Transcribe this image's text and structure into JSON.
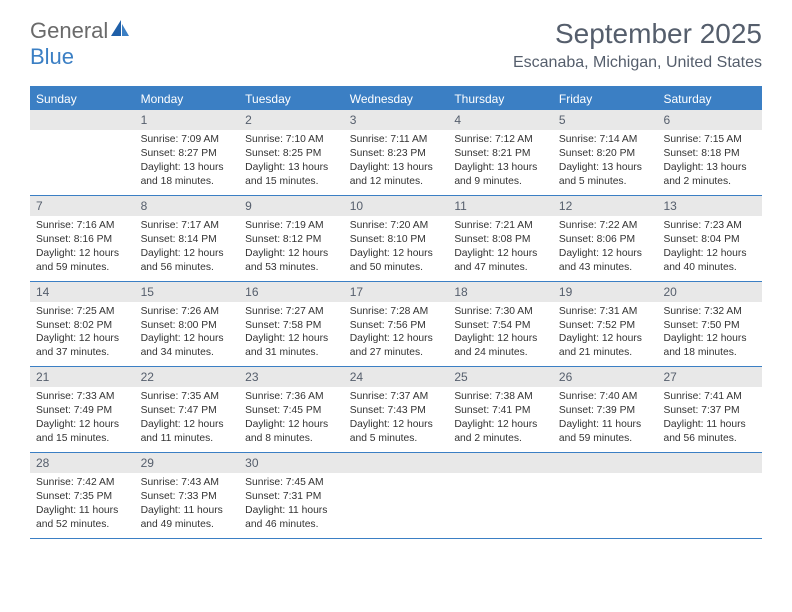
{
  "logo": {
    "text_general": "General",
    "text_blue": "Blue"
  },
  "title": "September 2025",
  "location": "Escanaba, Michigan, United States",
  "colors": {
    "accent": "#3b7fc4",
    "header_text": "#555e6c",
    "daynum_bg": "#e8e8e8",
    "body_text": "#333333",
    "white": "#ffffff"
  },
  "day_names": [
    "Sunday",
    "Monday",
    "Tuesday",
    "Wednesday",
    "Thursday",
    "Friday",
    "Saturday"
  ],
  "weeks": [
    [
      {
        "num": "",
        "sunrise": "",
        "sunset": "",
        "daylight": ""
      },
      {
        "num": "1",
        "sunrise": "Sunrise: 7:09 AM",
        "sunset": "Sunset: 8:27 PM",
        "daylight": "Daylight: 13 hours and 18 minutes."
      },
      {
        "num": "2",
        "sunrise": "Sunrise: 7:10 AM",
        "sunset": "Sunset: 8:25 PM",
        "daylight": "Daylight: 13 hours and 15 minutes."
      },
      {
        "num": "3",
        "sunrise": "Sunrise: 7:11 AM",
        "sunset": "Sunset: 8:23 PM",
        "daylight": "Daylight: 13 hours and 12 minutes."
      },
      {
        "num": "4",
        "sunrise": "Sunrise: 7:12 AM",
        "sunset": "Sunset: 8:21 PM",
        "daylight": "Daylight: 13 hours and 9 minutes."
      },
      {
        "num": "5",
        "sunrise": "Sunrise: 7:14 AM",
        "sunset": "Sunset: 8:20 PM",
        "daylight": "Daylight: 13 hours and 5 minutes."
      },
      {
        "num": "6",
        "sunrise": "Sunrise: 7:15 AM",
        "sunset": "Sunset: 8:18 PM",
        "daylight": "Daylight: 13 hours and 2 minutes."
      }
    ],
    [
      {
        "num": "7",
        "sunrise": "Sunrise: 7:16 AM",
        "sunset": "Sunset: 8:16 PM",
        "daylight": "Daylight: 12 hours and 59 minutes."
      },
      {
        "num": "8",
        "sunrise": "Sunrise: 7:17 AM",
        "sunset": "Sunset: 8:14 PM",
        "daylight": "Daylight: 12 hours and 56 minutes."
      },
      {
        "num": "9",
        "sunrise": "Sunrise: 7:19 AM",
        "sunset": "Sunset: 8:12 PM",
        "daylight": "Daylight: 12 hours and 53 minutes."
      },
      {
        "num": "10",
        "sunrise": "Sunrise: 7:20 AM",
        "sunset": "Sunset: 8:10 PM",
        "daylight": "Daylight: 12 hours and 50 minutes."
      },
      {
        "num": "11",
        "sunrise": "Sunrise: 7:21 AM",
        "sunset": "Sunset: 8:08 PM",
        "daylight": "Daylight: 12 hours and 47 minutes."
      },
      {
        "num": "12",
        "sunrise": "Sunrise: 7:22 AM",
        "sunset": "Sunset: 8:06 PM",
        "daylight": "Daylight: 12 hours and 43 minutes."
      },
      {
        "num": "13",
        "sunrise": "Sunrise: 7:23 AM",
        "sunset": "Sunset: 8:04 PM",
        "daylight": "Daylight: 12 hours and 40 minutes."
      }
    ],
    [
      {
        "num": "14",
        "sunrise": "Sunrise: 7:25 AM",
        "sunset": "Sunset: 8:02 PM",
        "daylight": "Daylight: 12 hours and 37 minutes."
      },
      {
        "num": "15",
        "sunrise": "Sunrise: 7:26 AM",
        "sunset": "Sunset: 8:00 PM",
        "daylight": "Daylight: 12 hours and 34 minutes."
      },
      {
        "num": "16",
        "sunrise": "Sunrise: 7:27 AM",
        "sunset": "Sunset: 7:58 PM",
        "daylight": "Daylight: 12 hours and 31 minutes."
      },
      {
        "num": "17",
        "sunrise": "Sunrise: 7:28 AM",
        "sunset": "Sunset: 7:56 PM",
        "daylight": "Daylight: 12 hours and 27 minutes."
      },
      {
        "num": "18",
        "sunrise": "Sunrise: 7:30 AM",
        "sunset": "Sunset: 7:54 PM",
        "daylight": "Daylight: 12 hours and 24 minutes."
      },
      {
        "num": "19",
        "sunrise": "Sunrise: 7:31 AM",
        "sunset": "Sunset: 7:52 PM",
        "daylight": "Daylight: 12 hours and 21 minutes."
      },
      {
        "num": "20",
        "sunrise": "Sunrise: 7:32 AM",
        "sunset": "Sunset: 7:50 PM",
        "daylight": "Daylight: 12 hours and 18 minutes."
      }
    ],
    [
      {
        "num": "21",
        "sunrise": "Sunrise: 7:33 AM",
        "sunset": "Sunset: 7:49 PM",
        "daylight": "Daylight: 12 hours and 15 minutes."
      },
      {
        "num": "22",
        "sunrise": "Sunrise: 7:35 AM",
        "sunset": "Sunset: 7:47 PM",
        "daylight": "Daylight: 12 hours and 11 minutes."
      },
      {
        "num": "23",
        "sunrise": "Sunrise: 7:36 AM",
        "sunset": "Sunset: 7:45 PM",
        "daylight": "Daylight: 12 hours and 8 minutes."
      },
      {
        "num": "24",
        "sunrise": "Sunrise: 7:37 AM",
        "sunset": "Sunset: 7:43 PM",
        "daylight": "Daylight: 12 hours and 5 minutes."
      },
      {
        "num": "25",
        "sunrise": "Sunrise: 7:38 AM",
        "sunset": "Sunset: 7:41 PM",
        "daylight": "Daylight: 12 hours and 2 minutes."
      },
      {
        "num": "26",
        "sunrise": "Sunrise: 7:40 AM",
        "sunset": "Sunset: 7:39 PM",
        "daylight": "Daylight: 11 hours and 59 minutes."
      },
      {
        "num": "27",
        "sunrise": "Sunrise: 7:41 AM",
        "sunset": "Sunset: 7:37 PM",
        "daylight": "Daylight: 11 hours and 56 minutes."
      }
    ],
    [
      {
        "num": "28",
        "sunrise": "Sunrise: 7:42 AM",
        "sunset": "Sunset: 7:35 PM",
        "daylight": "Daylight: 11 hours and 52 minutes."
      },
      {
        "num": "29",
        "sunrise": "Sunrise: 7:43 AM",
        "sunset": "Sunset: 7:33 PM",
        "daylight": "Daylight: 11 hours and 49 minutes."
      },
      {
        "num": "30",
        "sunrise": "Sunrise: 7:45 AM",
        "sunset": "Sunset: 7:31 PM",
        "daylight": "Daylight: 11 hours and 46 minutes."
      },
      {
        "num": "",
        "sunrise": "",
        "sunset": "",
        "daylight": ""
      },
      {
        "num": "",
        "sunrise": "",
        "sunset": "",
        "daylight": ""
      },
      {
        "num": "",
        "sunrise": "",
        "sunset": "",
        "daylight": ""
      },
      {
        "num": "",
        "sunrise": "",
        "sunset": "",
        "daylight": ""
      }
    ]
  ]
}
